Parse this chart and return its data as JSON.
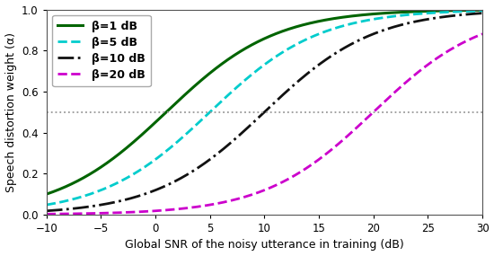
{
  "betas": [
    1,
    5,
    10,
    20
  ],
  "colors": [
    "#006400",
    "#00CCCC",
    "#111111",
    "#CC00CC"
  ],
  "linestyles": [
    "-",
    "--",
    "-.",
    "--"
  ],
  "linewidths": [
    2.2,
    2.0,
    2.0,
    2.0
  ],
  "legend_labels": [
    "β=1 dB",
    "β=5 dB",
    "β=10 dB",
    "β=20 dB"
  ],
  "xmin": -10,
  "xmax": 30,
  "ymin": 0.0,
  "ymax": 1.0,
  "xlabel": "Global SNR of the noisy utterance in training (dB)",
  "ylabel": "Speech distortion weight (α)",
  "hline_y": 0.5,
  "hline_color": "#999999",
  "hline_style": ":",
  "sigmoid_scale": 5.0,
  "xticks": [
    -10,
    -5,
    0,
    5,
    10,
    15,
    20,
    25,
    30
  ],
  "yticks": [
    0.0,
    0.2,
    0.4,
    0.6,
    0.8,
    1.0
  ],
  "legend_fontsize": 9.0,
  "axis_label_fontsize": 9.0,
  "tick_fontsize": 8.5,
  "background_color": "#ffffff",
  "figwidth": 5.5,
  "figheight": 2.85
}
